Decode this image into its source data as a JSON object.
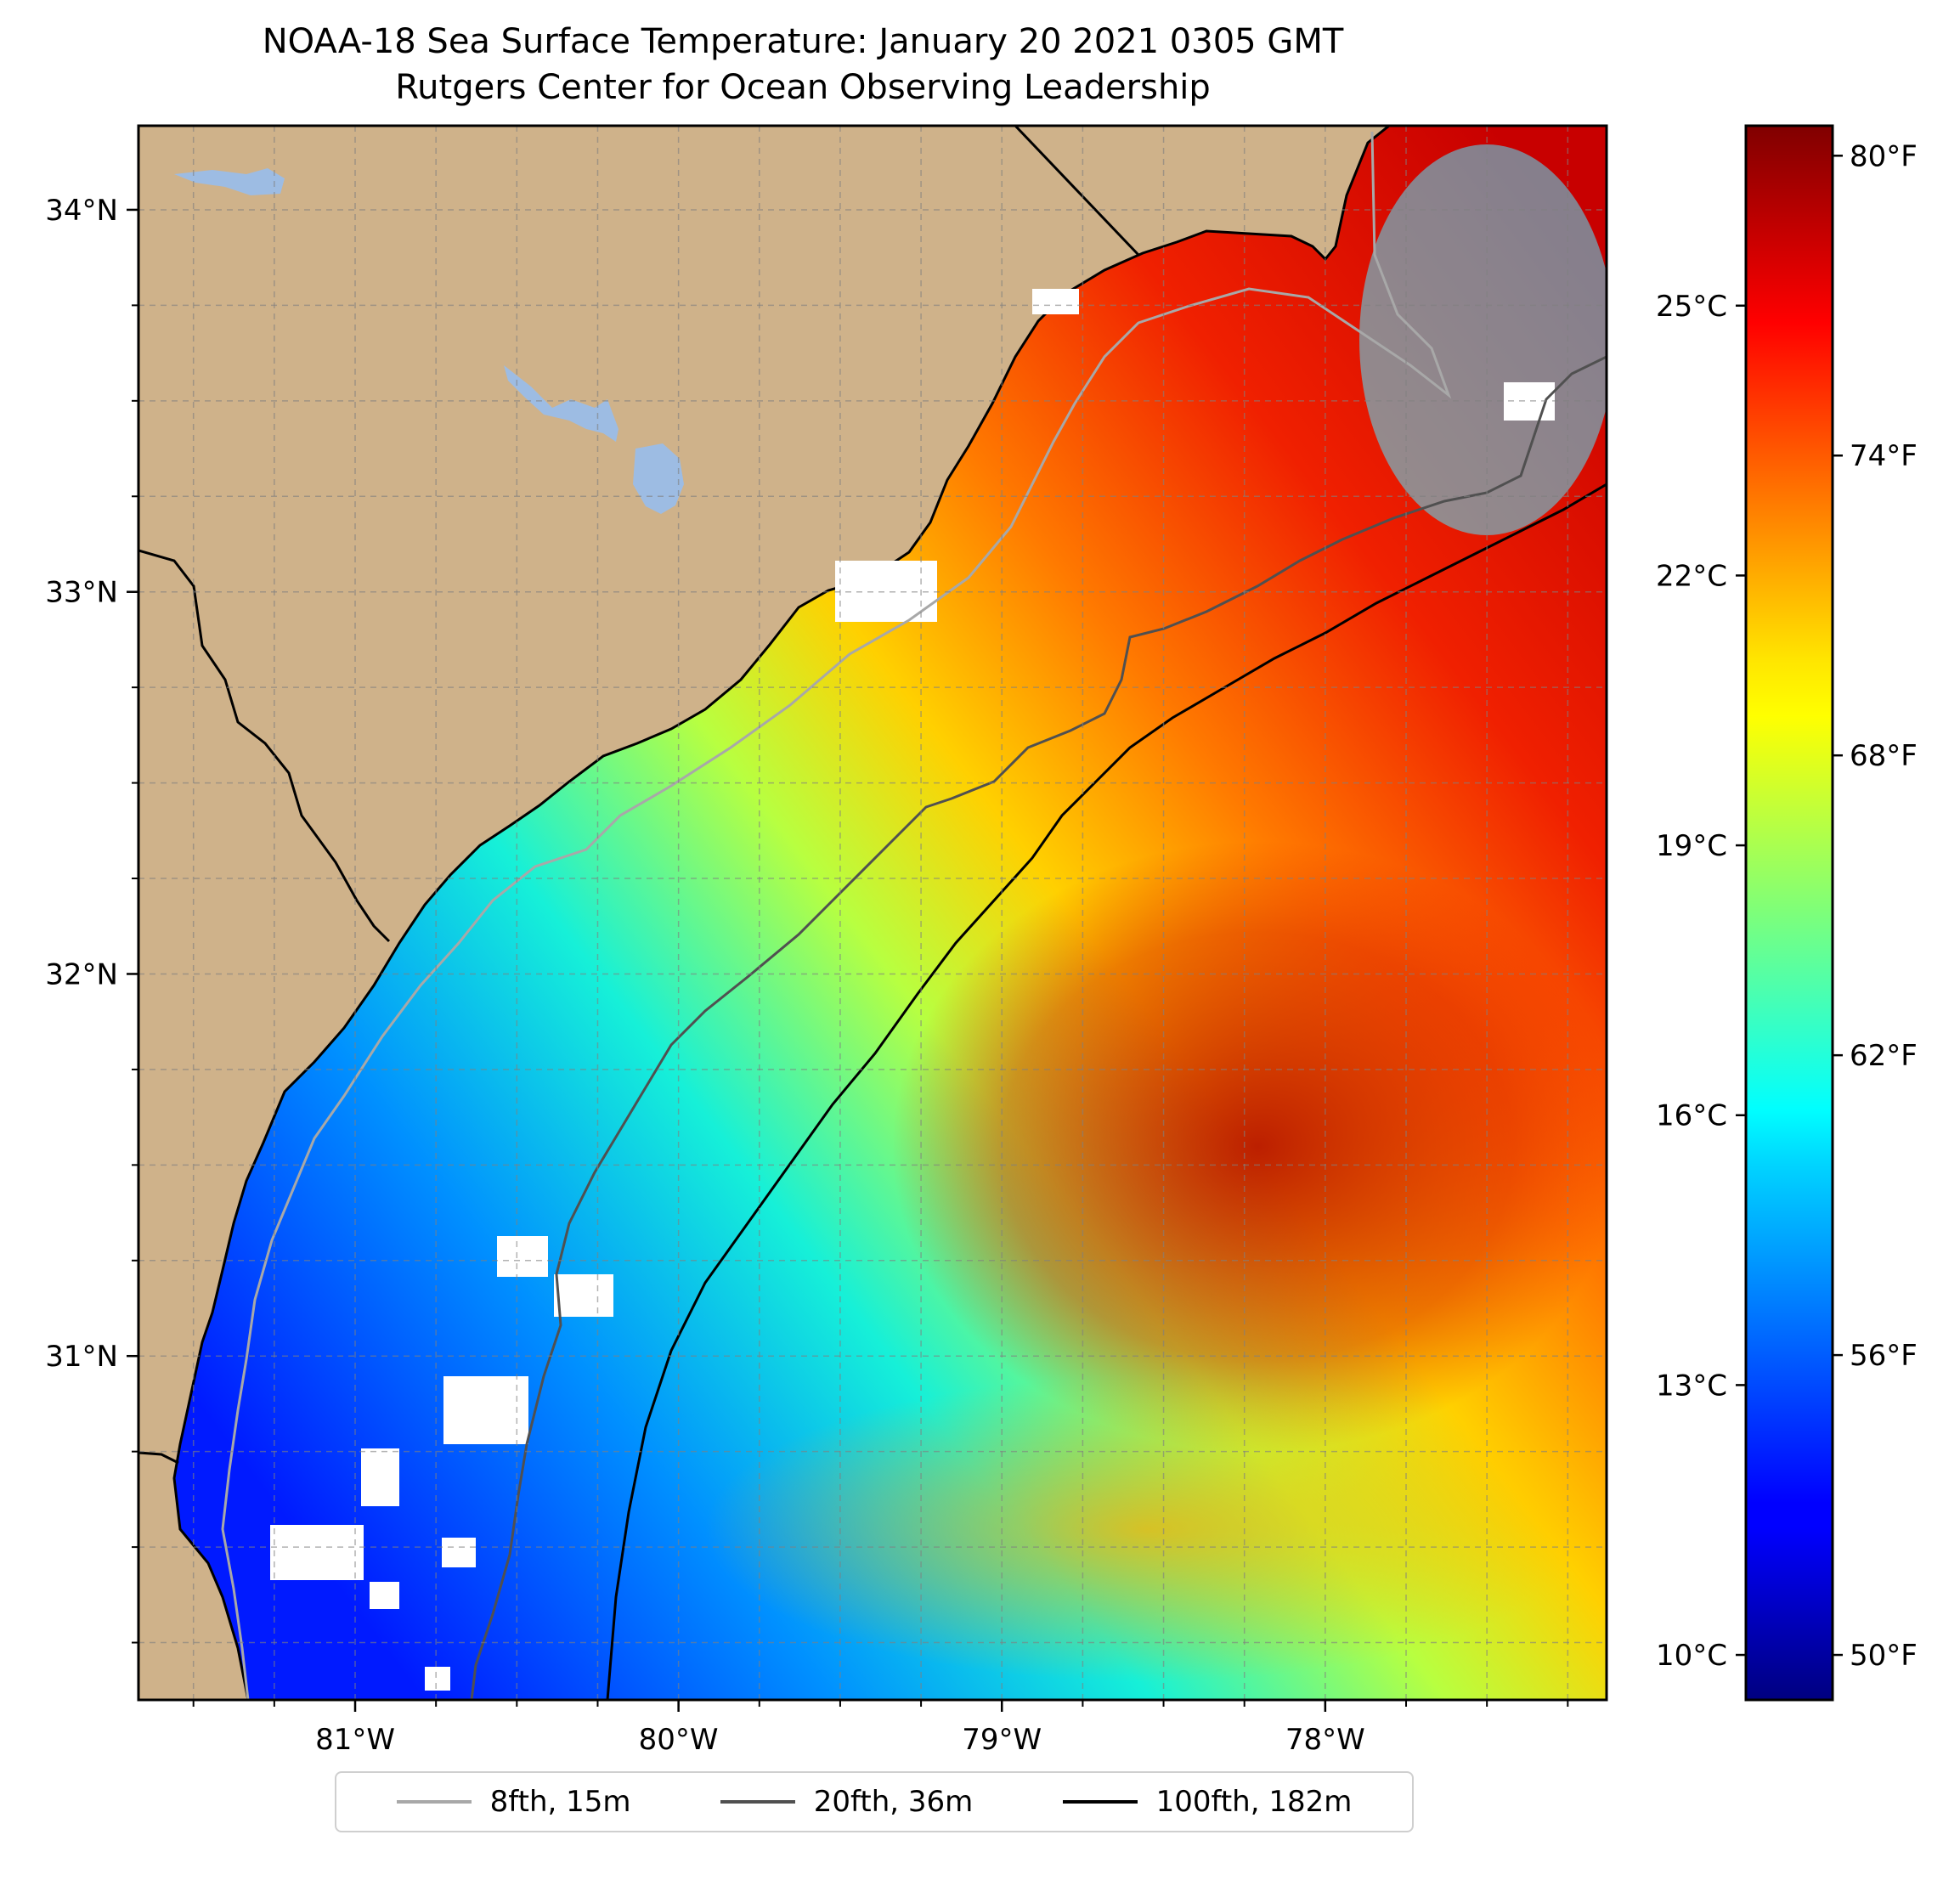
{
  "title": "NOAA-18 Sea Surface Temperature: January 20 2021 0305 GMT",
  "subtitle": "Rutgers Center for Ocean Observing Leadership",
  "colors": {
    "land": "#cfb28a",
    "lake": "#9dbce3",
    "coastline": "#000000",
    "no_data": "#ffffff"
  },
  "map": {
    "lon_range": [
      -81.67,
      -77.13
    ],
    "lat_range": [
      30.1,
      34.22
    ],
    "lon_ticks": [
      {
        "value": -81,
        "label": "81°W"
      },
      {
        "value": -80,
        "label": "80°W"
      },
      {
        "value": -79,
        "label": "79°W"
      },
      {
        "value": -78,
        "label": "78°W"
      }
    ],
    "lat_ticks": [
      {
        "value": 34,
        "label": "34°N"
      },
      {
        "value": 33,
        "label": "33°N"
      },
      {
        "value": 32,
        "label": "32°N"
      },
      {
        "value": 31,
        "label": "31°N"
      }
    ],
    "grid": "dashed, every 0.25°"
  },
  "colorbar": {
    "colormap": "jet",
    "range_c": [
      9.5,
      27.0
    ],
    "celsius_ticks": [
      {
        "value": 10,
        "label": "10°C"
      },
      {
        "value": 13,
        "label": "13°C"
      },
      {
        "value": 16,
        "label": "16°C"
      },
      {
        "value": 19,
        "label": "19°C"
      },
      {
        "value": 22,
        "label": "22°C"
      },
      {
        "value": 25,
        "label": "25°C"
      }
    ],
    "fahrenheit_ticks": [
      {
        "value": 50,
        "label": "50°F"
      },
      {
        "value": 56,
        "label": "56°F"
      },
      {
        "value": 62,
        "label": "62°F"
      },
      {
        "value": 68,
        "label": "68°F"
      },
      {
        "value": 74,
        "label": "74°F"
      },
      {
        "value": 80,
        "label": "80°F"
      }
    ]
  },
  "legend": {
    "items": [
      {
        "label": "8fth, 15m",
        "color": "#a8a8a8"
      },
      {
        "label": "20fth, 36m",
        "color": "#505050"
      },
      {
        "label": "100fth, 182m",
        "color": "#000000"
      }
    ]
  }
}
